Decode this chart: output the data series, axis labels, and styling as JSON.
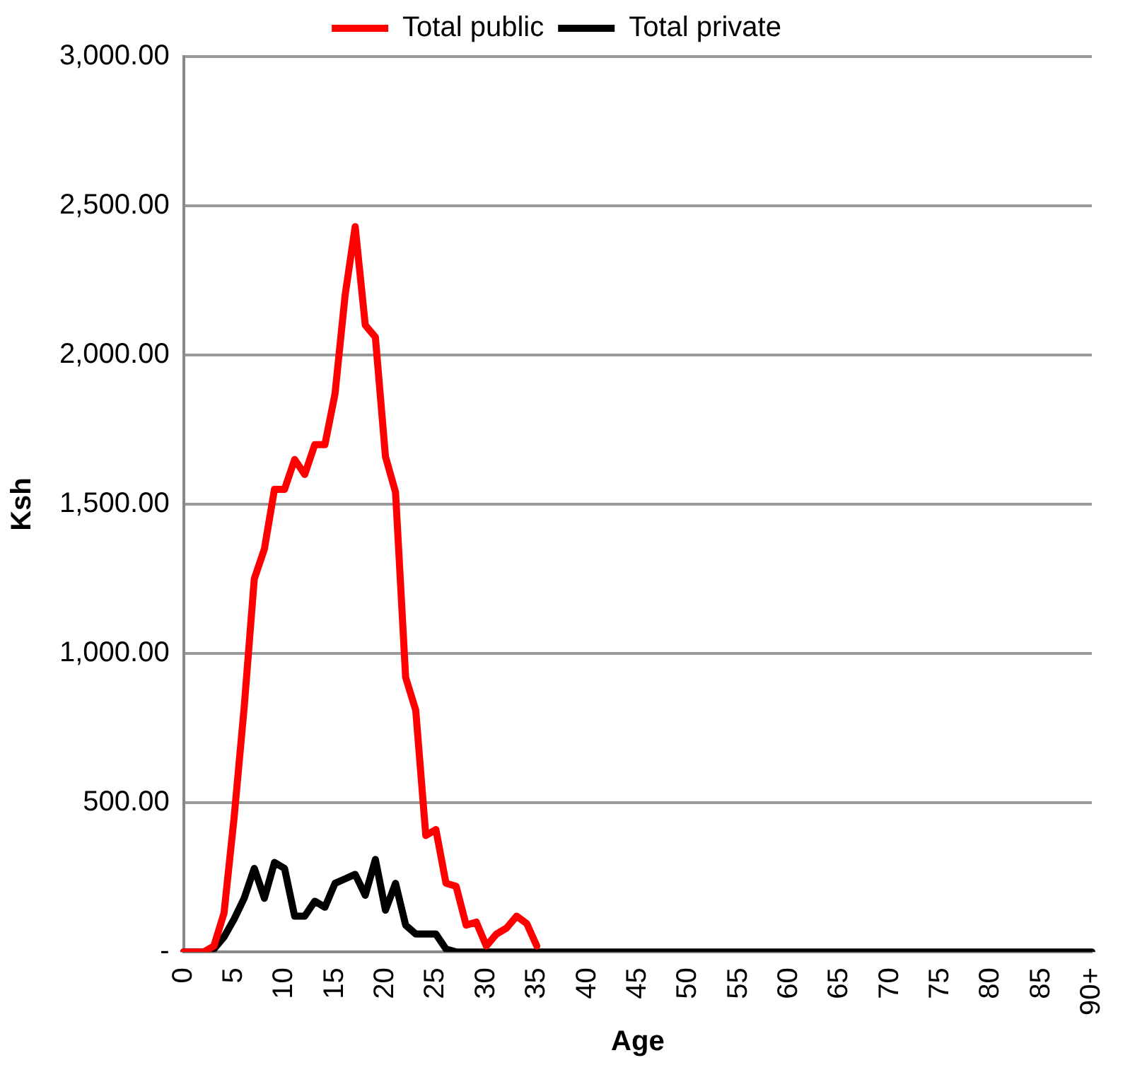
{
  "chart_data": {
    "type": "line",
    "xlabel": "Age",
    "ylabel": "Ksh",
    "categories": [
      "0",
      null,
      null,
      null,
      null,
      "5",
      null,
      null,
      null,
      null,
      "10",
      null,
      null,
      null,
      null,
      "15",
      null,
      null,
      null,
      null,
      "20",
      null,
      null,
      null,
      null,
      "25",
      null,
      null,
      null,
      null,
      "30",
      null,
      null,
      null,
      null,
      "35",
      null,
      null,
      null,
      null,
      "40",
      null,
      null,
      null,
      null,
      "45",
      null,
      null,
      null,
      null,
      "50",
      null,
      null,
      null,
      null,
      "55",
      null,
      null,
      null,
      null,
      "60",
      null,
      null,
      null,
      null,
      "65",
      null,
      null,
      null,
      null,
      "70",
      null,
      null,
      null,
      null,
      "75",
      null,
      null,
      null,
      null,
      "80",
      null,
      null,
      null,
      null,
      "85",
      null,
      null,
      null,
      null,
      "90+"
    ],
    "series": [
      {
        "name": "Total public",
        "color": "#ff0000",
        "values": [
          0,
          0,
          0,
          20,
          130,
          450,
          820,
          1250,
          1350,
          1550,
          1550,
          1650,
          1600,
          1700,
          1700,
          1870,
          2200,
          2430,
          2100,
          2060,
          1660,
          1540,
          920,
          810,
          390,
          410,
          230,
          220,
          90,
          100,
          20,
          60,
          80,
          120,
          95,
          20,
          null,
          null,
          null,
          null,
          null,
          null,
          null,
          null,
          null,
          null,
          null,
          null,
          null,
          null,
          null,
          null,
          null,
          null,
          null,
          null,
          null,
          null,
          null,
          null,
          null,
          null,
          null,
          null,
          null,
          null,
          null,
          null,
          null,
          null,
          null,
          null,
          null,
          null,
          null,
          null,
          null,
          null,
          null,
          null,
          null,
          null,
          null,
          null,
          null,
          null,
          null,
          null,
          null,
          null,
          null
        ]
      },
      {
        "name": "Total private",
        "color": "#000000",
        "values": [
          0,
          0,
          0,
          10,
          50,
          110,
          180,
          280,
          180,
          300,
          280,
          120,
          120,
          170,
          150,
          230,
          245,
          260,
          190,
          310,
          140,
          230,
          90,
          60,
          60,
          60,
          10,
          0,
          0,
          0,
          0,
          0,
          0,
          0,
          0,
          0,
          0,
          0,
          0,
          0,
          0,
          0,
          0,
          0,
          0,
          0,
          0,
          0,
          0,
          0,
          0,
          0,
          0,
          0,
          0,
          0,
          0,
          0,
          0,
          0,
          0,
          0,
          0,
          0,
          0,
          0,
          0,
          0,
          0,
          0,
          0,
          0,
          0,
          0,
          0,
          0,
          0,
          0,
          0,
          0,
          0,
          0,
          0,
          0,
          0,
          0,
          0,
          0,
          0,
          0,
          0
        ]
      }
    ],
    "ylim": [
      0,
      3000
    ],
    "yticks": [
      {
        "value": 0,
        "label": "-"
      },
      {
        "value": 500,
        "label": "500.00"
      },
      {
        "value": 1000,
        "label": "1,000.00"
      },
      {
        "value": 1500,
        "label": "1,500.00"
      },
      {
        "value": 2000,
        "label": "2,000.00"
      },
      {
        "value": 2500,
        "label": "2,500.00"
      },
      {
        "value": 3000,
        "label": "3,000.00"
      }
    ],
    "grid": "y",
    "legend": "top",
    "marker": "none",
    "line_style": "solid"
  }
}
